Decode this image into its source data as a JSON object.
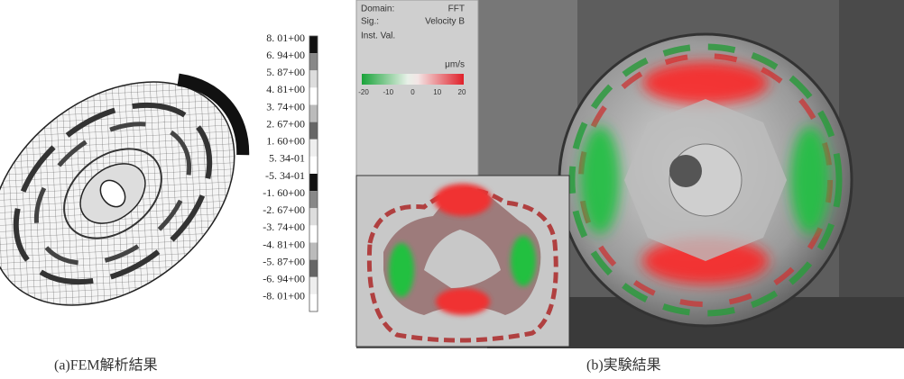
{
  "panel_a": {
    "colorbar_labels": [
      "8. 01+00",
      "6. 94+00",
      "5. 87+00",
      "4. 81+00",
      "3. 74+00",
      "2. 67+00",
      "1. 60+00",
      "5. 34-01",
      "-5. 34-01",
      "-1. 60+00",
      "-2. 67+00",
      "-3. 74+00",
      "-4. 81+00",
      "-5. 87+00",
      "-6. 94+00",
      "-8. 01+00"
    ],
    "caption": "(a)FEM解析結果"
  },
  "panel_b": {
    "overlay": {
      "domain_label": "Domain:",
      "domain_value": "FFT",
      "sig_label": "Sig.:",
      "sig_value": "Velocity B",
      "inst_label": "Inst. Val.",
      "unit": "μm/s",
      "scale_ticks": [
        "-20",
        "-10",
        "0",
        "10",
        "20"
      ]
    },
    "caption": "(b)実験結果"
  }
}
